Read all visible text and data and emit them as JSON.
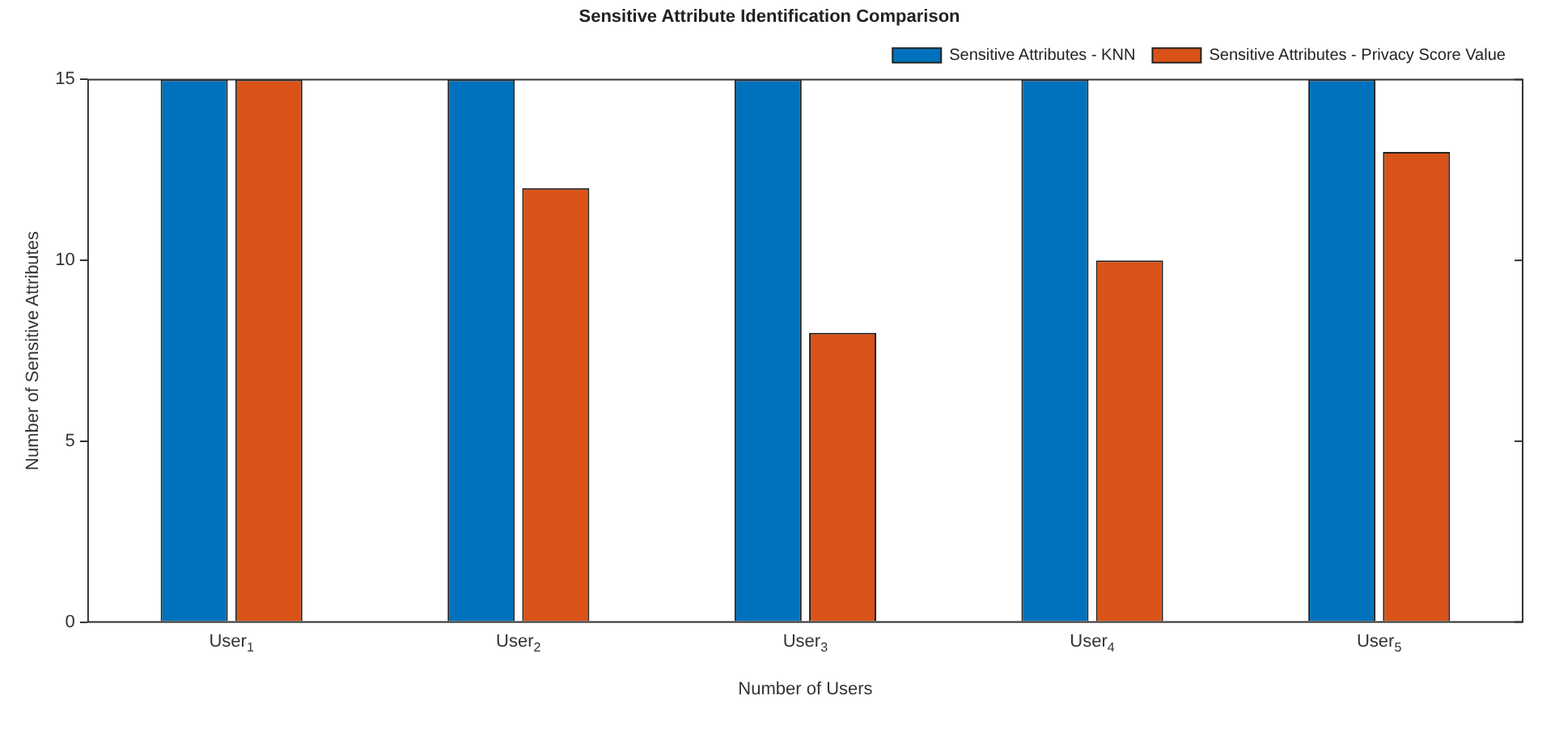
{
  "chart_data": {
    "type": "bar",
    "title": "Sensitive Attribute Identification Comparison",
    "xlabel": "Number of Users",
    "ylabel": "Number of Sensitive Attributes",
    "categories": [
      "User$_{1}$",
      "User$_{2}$",
      "User$_{3}$",
      "User$_{4}$",
      "User$_{5}$"
    ],
    "series": [
      {
        "name": "Sensitive Attributes - KNN",
        "color": "#0072bd",
        "values": [
          15,
          15,
          15,
          15,
          15
        ]
      },
      {
        "name": "Sensitive Attributes - Privacy Score Value",
        "color": "#d95319",
        "values": [
          15,
          12,
          8,
          10,
          13
        ]
      }
    ],
    "ylim": [
      0,
      15
    ],
    "yticks": [
      0,
      5,
      10,
      15
    ],
    "grid": false,
    "legend": "top right"
  }
}
